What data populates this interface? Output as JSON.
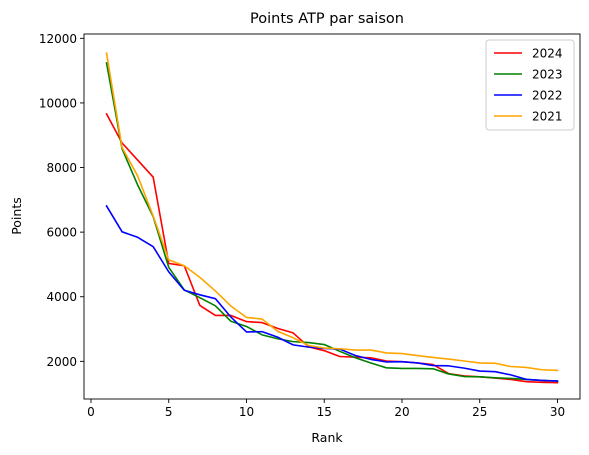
{
  "chart_data": {
    "type": "line",
    "title": "Points ATP par saison",
    "xlabel": "Rank",
    "ylabel": "Points",
    "xlim": [
      -0.45,
      31.45
    ],
    "ylim": [
      834,
      12134
    ],
    "xticks": [
      0,
      5,
      10,
      15,
      20,
      25,
      30
    ],
    "yticks": [
      2000,
      4000,
      6000,
      8000,
      10000,
      12000
    ],
    "grid": false,
    "legend_position": "top-right",
    "x": [
      1,
      2,
      3,
      4,
      5,
      6,
      7,
      8,
      9,
      10,
      11,
      12,
      13,
      14,
      15,
      16,
      17,
      18,
      19,
      20,
      21,
      22,
      23,
      24,
      25,
      26,
      27,
      28,
      29,
      30
    ],
    "series": [
      {
        "name": "2024",
        "color": "#ff0000",
        "values": [
          9660,
          8760,
          8230,
          7700,
          5030,
          4960,
          3730,
          3420,
          3420,
          3230,
          3200,
          3020,
          2880,
          2450,
          2330,
          2150,
          2130,
          2110,
          2010,
          1990,
          1950,
          1900,
          1620,
          1550,
          1520,
          1480,
          1440,
          1370,
          1350,
          1340
        ]
      },
      {
        "name": "2023",
        "color": "#008000",
        "values": [
          11240,
          8580,
          7460,
          6480,
          4910,
          4210,
          3970,
          3720,
          3240,
          3080,
          2820,
          2700,
          2610,
          2580,
          2520,
          2310,
          2110,
          1950,
          1800,
          1780,
          1780,
          1770,
          1610,
          1530,
          1520,
          1490,
          1470,
          1440,
          1410,
          1390
        ]
      },
      {
        "name": "2022",
        "color": "#0000ff",
        "values": [
          6810,
          6010,
          5840,
          5550,
          4770,
          4200,
          4060,
          3940,
          3370,
          2910,
          2920,
          2750,
          2510,
          2440,
          2400,
          2380,
          2180,
          2060,
          1980,
          1990,
          1950,
          1870,
          1860,
          1790,
          1700,
          1680,
          1580,
          1440,
          1410,
          1390
        ]
      },
      {
        "name": "2021",
        "color": "#ffa500",
        "values": [
          11540,
          8620,
          7740,
          6500,
          5140,
          4960,
          4600,
          4180,
          3710,
          3360,
          3310,
          2930,
          2730,
          2490,
          2410,
          2390,
          2350,
          2350,
          2260,
          2240,
          2180,
          2120,
          2070,
          2010,
          1950,
          1940,
          1840,
          1810,
          1740,
          1720
        ]
      }
    ]
  }
}
